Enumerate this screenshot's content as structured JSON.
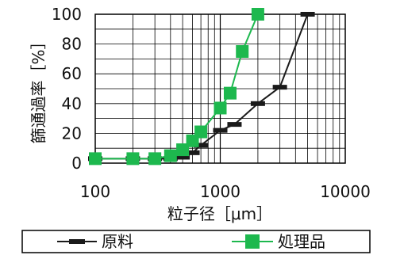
{
  "chart_data": {
    "type": "line",
    "xscale": "log",
    "xlim": [
      100,
      10000
    ],
    "ylim": [
      0,
      100
    ],
    "xticks": [
      100,
      1000,
      10000
    ],
    "xtick_labels": [
      "100",
      "1000",
      "10000"
    ],
    "yticks": [
      0,
      20,
      40,
      60,
      80,
      100
    ],
    "ytick_labels": [
      "0",
      "20",
      "40",
      "60",
      "80",
      "100"
    ],
    "xlabel": "粒子径［μm］",
    "ylabel": "篩通過率［%］",
    "grid": true,
    "legend_position": "bottom",
    "series": [
      {
        "name": "原料",
        "color": "#1a1a1a",
        "marker": "dash",
        "points": [
          {
            "x": 100,
            "y": 3
          },
          {
            "x": 200,
            "y": 3
          },
          {
            "x": 300,
            "y": 3
          },
          {
            "x": 400,
            "y": 3
          },
          {
            "x": 500,
            "y": 4
          },
          {
            "x": 600,
            "y": 7
          },
          {
            "x": 700,
            "y": 12
          },
          {
            "x": 1000,
            "y": 22
          },
          {
            "x": 1300,
            "y": 26
          },
          {
            "x": 2000,
            "y": 40
          },
          {
            "x": 3000,
            "y": 51
          },
          {
            "x": 5000,
            "y": 100
          }
        ]
      },
      {
        "name": "処理品",
        "color": "#1db84e",
        "marker": "square",
        "points": [
          {
            "x": 100,
            "y": 3
          },
          {
            "x": 200,
            "y": 3
          },
          {
            "x": 300,
            "y": 3
          },
          {
            "x": 400,
            "y": 5
          },
          {
            "x": 500,
            "y": 9
          },
          {
            "x": 600,
            "y": 15
          },
          {
            "x": 700,
            "y": 21
          },
          {
            "x": 1000,
            "y": 37
          },
          {
            "x": 1200,
            "y": 47
          },
          {
            "x": 1500,
            "y": 75
          },
          {
            "x": 2000,
            "y": 100
          }
        ]
      }
    ]
  }
}
